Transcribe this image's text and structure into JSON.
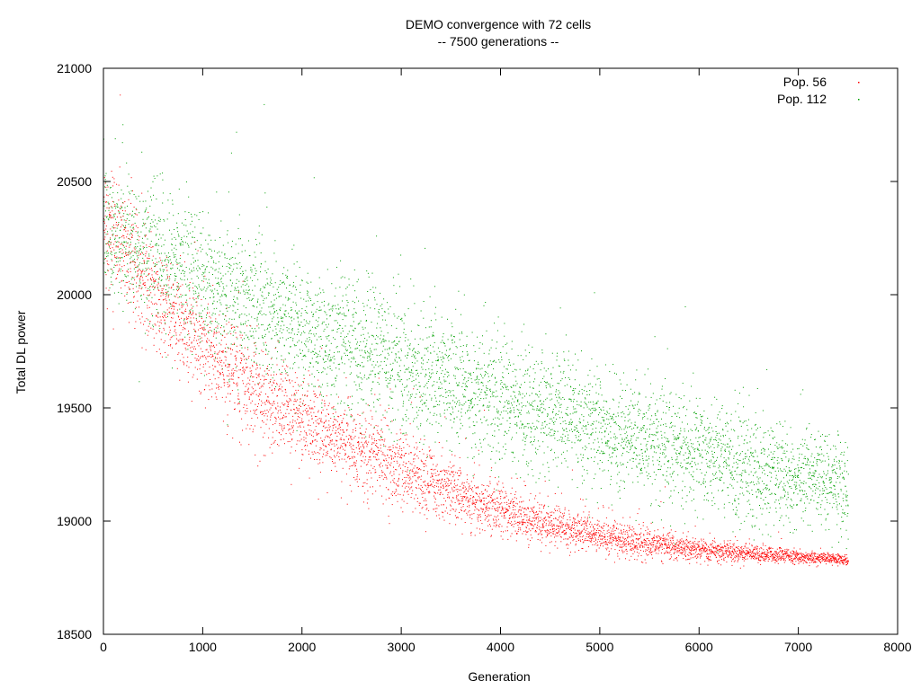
{
  "chart_data": {
    "type": "scatter",
    "title": "DEMO convergence with 72 cells",
    "subtitle": "-- 7500 generations --",
    "xlabel": "Generation",
    "ylabel": "Total DL power",
    "xlim": [
      0,
      8000
    ],
    "ylim": [
      18500,
      21000
    ],
    "xticks": [
      0,
      1000,
      2000,
      3000,
      4000,
      5000,
      6000,
      7000,
      8000
    ],
    "yticks": [
      18500,
      19000,
      19500,
      20000,
      20500,
      21000
    ],
    "grid": false,
    "legend_position": "top-right",
    "series": [
      {
        "name": "Pop. 56",
        "color": "#ff0000",
        "trend": {
          "x": [
            0,
            250,
            500,
            1000,
            1500,
            2000,
            2500,
            3000,
            3500,
            4000,
            4500,
            5000,
            5500,
            6000,
            6500,
            7000,
            7500
          ],
          "y": [
            20300,
            20170,
            20000,
            19780,
            19580,
            19450,
            19330,
            19230,
            19130,
            19050,
            18990,
            18940,
            18900,
            18875,
            18860,
            18845,
            18830
          ]
        },
        "spread": {
          "x": [
            0,
            1000,
            2000,
            3000,
            4000,
            5000,
            6000,
            7000,
            7500
          ],
          "y": [
            130,
            110,
            100,
            85,
            60,
            40,
            25,
            15,
            12
          ]
        }
      },
      {
        "name": "Pop. 112",
        "color": "#00a000",
        "trend": {
          "x": [
            0,
            250,
            500,
            1000,
            1500,
            2000,
            2500,
            3000,
            3500,
            4000,
            4500,
            5000,
            5500,
            6000,
            6500,
            7000,
            7500
          ],
          "y": [
            20300,
            20250,
            20180,
            20060,
            19950,
            19860,
            19770,
            19690,
            19610,
            19540,
            19470,
            19410,
            19350,
            19290,
            19240,
            19190,
            19150
          ]
        },
        "spread": {
          "x": [
            0,
            1000,
            2000,
            3000,
            4000,
            5000,
            6000,
            7000,
            7500
          ],
          "y": [
            140,
            150,
            150,
            150,
            140,
            130,
            120,
            110,
            110
          ]
        }
      }
    ]
  }
}
